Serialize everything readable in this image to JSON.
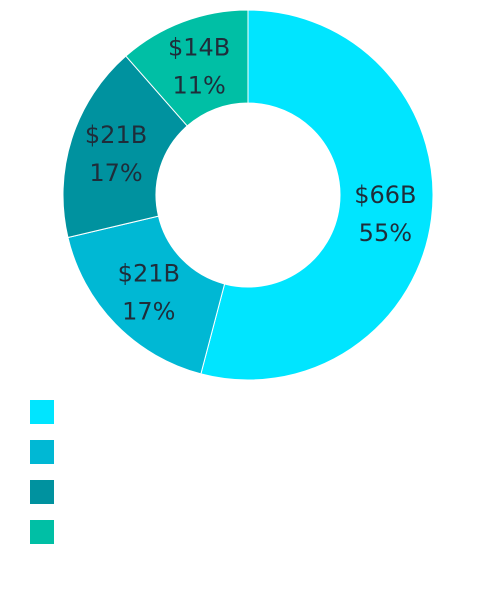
{
  "chart_data": {
    "type": "pie",
    "donut": true,
    "slices": [
      {
        "value_label": "$66B",
        "percent_label": "55%",
        "value": 66,
        "percent": 55,
        "color": "#00e5ff"
      },
      {
        "value_label": "$21B",
        "percent_label": "17%",
        "value": 21,
        "percent": 17,
        "color": "#00b8d4"
      },
      {
        "value_label": "$21B",
        "percent_label": "17%",
        "value": 21,
        "percent": 17,
        "color": "#00929f"
      },
      {
        "value_label": "$14B",
        "percent_label": "11%",
        "value": 14,
        "percent": 11,
        "color": "#00bfa5"
      }
    ],
    "legend": {
      "placement": "bottom-left",
      "entries": [
        {
          "label": "",
          "color": "#00e5ff"
        },
        {
          "label": "",
          "color": "#00b8d4"
        },
        {
          "label": "",
          "color": "#00929f"
        },
        {
          "label": "",
          "color": "#00bfa5"
        }
      ]
    }
  }
}
